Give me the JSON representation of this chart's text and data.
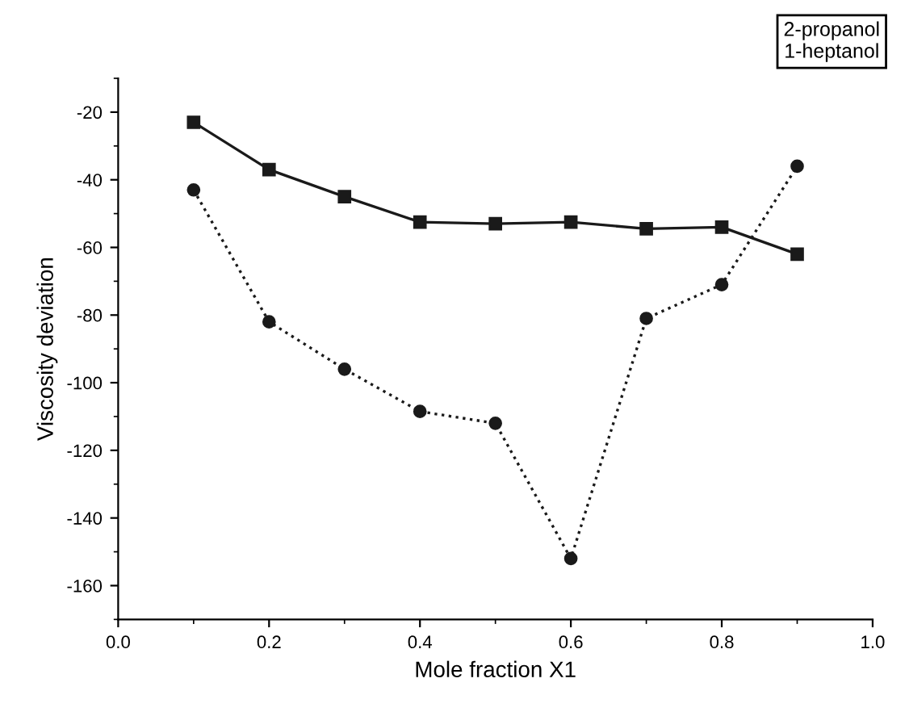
{
  "chart_data": {
    "type": "line",
    "xlabel": "Mole fraction X1",
    "ylabel": "Viscosity deviation",
    "annotations": [
      "2-propanol\n1-heptanol"
    ],
    "x": [
      0.1,
      0.2,
      0.3,
      0.4,
      0.5,
      0.6,
      0.7,
      0.8,
      0.9
    ],
    "series": [
      {
        "color": "#1a1a1a",
        "marker": "square",
        "line_style": "solid",
        "values": [
          -23,
          -37,
          -45,
          -52.5,
          -53,
          -52.5,
          -54.5,
          -54,
          -62
        ]
      },
      {
        "color": "#1a1a1a",
        "marker": "circle",
        "line_style": "dotted",
        "values": [
          -43,
          -82,
          -96,
          -108.5,
          -112,
          -152,
          -81,
          -71,
          -36
        ]
      }
    ],
    "xlim": [
      0.0,
      1.0
    ],
    "ylim": [
      -170,
      -10
    ],
    "xticks": [
      {
        "value": 0.0,
        "label": "0.0"
      },
      {
        "value": 0.2,
        "label": "0.2"
      },
      {
        "value": 0.4,
        "label": "0.4"
      },
      {
        "value": 0.6,
        "label": "0.6"
      },
      {
        "value": 0.8,
        "label": "0.8"
      },
      {
        "value": 1.0,
        "label": "1.0"
      }
    ],
    "yticks": [
      -160,
      -140,
      -120,
      -100,
      -80,
      -60,
      -40,
      -20
    ],
    "grid": false,
    "legend": false
  }
}
